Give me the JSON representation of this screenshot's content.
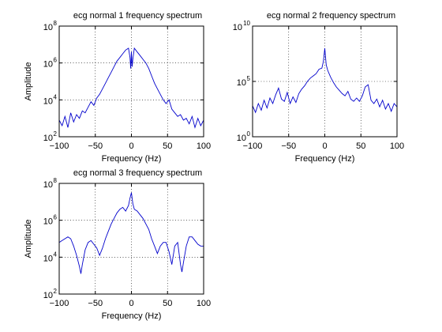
{
  "chart_data": [
    {
      "type": "line",
      "title": "ecg normal 1 frequency spectrum",
      "xlabel": "Frequency (Hz)",
      "ylabel": "Amplitude",
      "xlim": [
        -100,
        100
      ],
      "xticks": [
        -100,
        -50,
        0,
        50,
        100
      ],
      "yscale": "log",
      "ylim_exponents": [
        2,
        8
      ],
      "yticks_exponents": [
        2,
        4,
        6,
        8
      ],
      "grid": true,
      "line_color": "#0000cc",
      "series": [
        {
          "x": [
            -100,
            -96,
            -92,
            -88,
            -84,
            -80,
            -76,
            -72,
            -68,
            -64,
            -60,
            -56,
            -52,
            -48,
            -44,
            -40,
            -36,
            -32,
            -28,
            -24,
            -20,
            -16,
            -12,
            -8,
            -4,
            -2,
            -1,
            0,
            1,
            2,
            4,
            8,
            12,
            16,
            20,
            24,
            28,
            32,
            36,
            40,
            44,
            48,
            52,
            56,
            60,
            64,
            68,
            72,
            76,
            80,
            84,
            88,
            92,
            96,
            100
          ],
          "log10_y": [
            2.9,
            2.6,
            3.1,
            2.5,
            3.3,
            2.8,
            3.2,
            3.0,
            3.4,
            3.3,
            3.6,
            3.9,
            3.7,
            4.1,
            4.3,
            4.6,
            4.9,
            5.2,
            5.5,
            5.8,
            6.1,
            6.3,
            6.5,
            6.7,
            6.8,
            6.3,
            5.7,
            6.6,
            5.8,
            6.2,
            6.8,
            6.6,
            6.4,
            6.2,
            6.0,
            5.7,
            5.3,
            4.9,
            4.6,
            4.3,
            4.0,
            3.8,
            4.0,
            3.5,
            3.3,
            3.1,
            3.2,
            2.9,
            3.0,
            2.7,
            3.1,
            2.5,
            3.0,
            2.6,
            2.9
          ]
        }
      ]
    },
    {
      "type": "line",
      "title": "ecg normal 2 frequency spectrum",
      "xlabel": "Frequency (Hz)",
      "ylabel": "",
      "xlim": [
        -100,
        100
      ],
      "xticks": [
        -100,
        -50,
        0,
        50,
        100
      ],
      "yscale": "log",
      "ylim_exponents": [
        0,
        10
      ],
      "yticks_exponents": [
        0,
        5,
        10
      ],
      "grid": true,
      "line_color": "#0000cc",
      "series": [
        {
          "x": [
            -100,
            -96,
            -92,
            -88,
            -84,
            -80,
            -76,
            -72,
            -68,
            -64,
            -60,
            -56,
            -52,
            -48,
            -44,
            -40,
            -36,
            -32,
            -28,
            -24,
            -20,
            -16,
            -12,
            -8,
            -4,
            -2,
            0,
            2,
            4,
            8,
            12,
            16,
            20,
            24,
            28,
            32,
            36,
            40,
            44,
            48,
            52,
            56,
            60,
            64,
            68,
            72,
            76,
            80,
            84,
            88,
            92,
            96,
            100
          ],
          "log10_y": [
            2.8,
            2.2,
            3.0,
            2.4,
            3.3,
            2.6,
            3.5,
            3.0,
            3.8,
            4.4,
            3.4,
            3.2,
            4.0,
            3.0,
            3.6,
            3.1,
            3.9,
            4.3,
            4.6,
            5.0,
            5.3,
            5.5,
            5.7,
            6.1,
            6.2,
            6.8,
            8.0,
            6.5,
            6.0,
            5.4,
            4.9,
            4.5,
            4.2,
            3.9,
            3.7,
            4.1,
            3.4,
            3.2,
            3.5,
            3.2,
            3.7,
            4.5,
            4.7,
            3.3,
            3.0,
            3.4,
            2.7,
            3.3,
            2.5,
            3.0,
            2.3,
            3.0,
            2.7
          ]
        }
      ]
    },
    {
      "type": "line",
      "title": "ecg normal 3 frequency spectrum",
      "xlabel": "Frequency (Hz)",
      "ylabel": "Amplitude",
      "xlim": [
        -100,
        100
      ],
      "xticks": [
        -100,
        -50,
        0,
        50,
        100
      ],
      "yscale": "log",
      "ylim_exponents": [
        2,
        8
      ],
      "yticks_exponents": [
        2,
        4,
        6,
        8
      ],
      "grid": true,
      "line_color": "#0000cc",
      "series": [
        {
          "x": [
            -100,
            -96,
            -92,
            -88,
            -84,
            -80,
            -76,
            -72,
            -70,
            -68,
            -64,
            -60,
            -56,
            -52,
            -48,
            -44,
            -40,
            -36,
            -32,
            -28,
            -24,
            -20,
            -16,
            -12,
            -8,
            -4,
            -2,
            0,
            2,
            4,
            8,
            12,
            16,
            20,
            24,
            28,
            32,
            36,
            40,
            44,
            48,
            52,
            56,
            60,
            64,
            68,
            70,
            72,
            76,
            80,
            84,
            88,
            92,
            96,
            100
          ],
          "log10_y": [
            4.8,
            4.9,
            5.0,
            5.1,
            5.0,
            4.6,
            4.1,
            3.5,
            3.1,
            3.6,
            4.4,
            4.8,
            4.9,
            4.7,
            4.5,
            4.1,
            4.5,
            5.0,
            5.4,
            5.8,
            6.1,
            6.4,
            6.6,
            6.7,
            6.5,
            6.8,
            7.2,
            7.5,
            6.9,
            6.6,
            6.5,
            6.3,
            6.1,
            5.8,
            5.5,
            5.0,
            4.6,
            4.2,
            4.6,
            4.8,
            4.8,
            4.3,
            3.6,
            4.6,
            4.8,
            3.6,
            3.2,
            3.7,
            4.6,
            5.1,
            5.1,
            4.9,
            4.7,
            4.6,
            4.6
          ]
        }
      ]
    }
  ]
}
